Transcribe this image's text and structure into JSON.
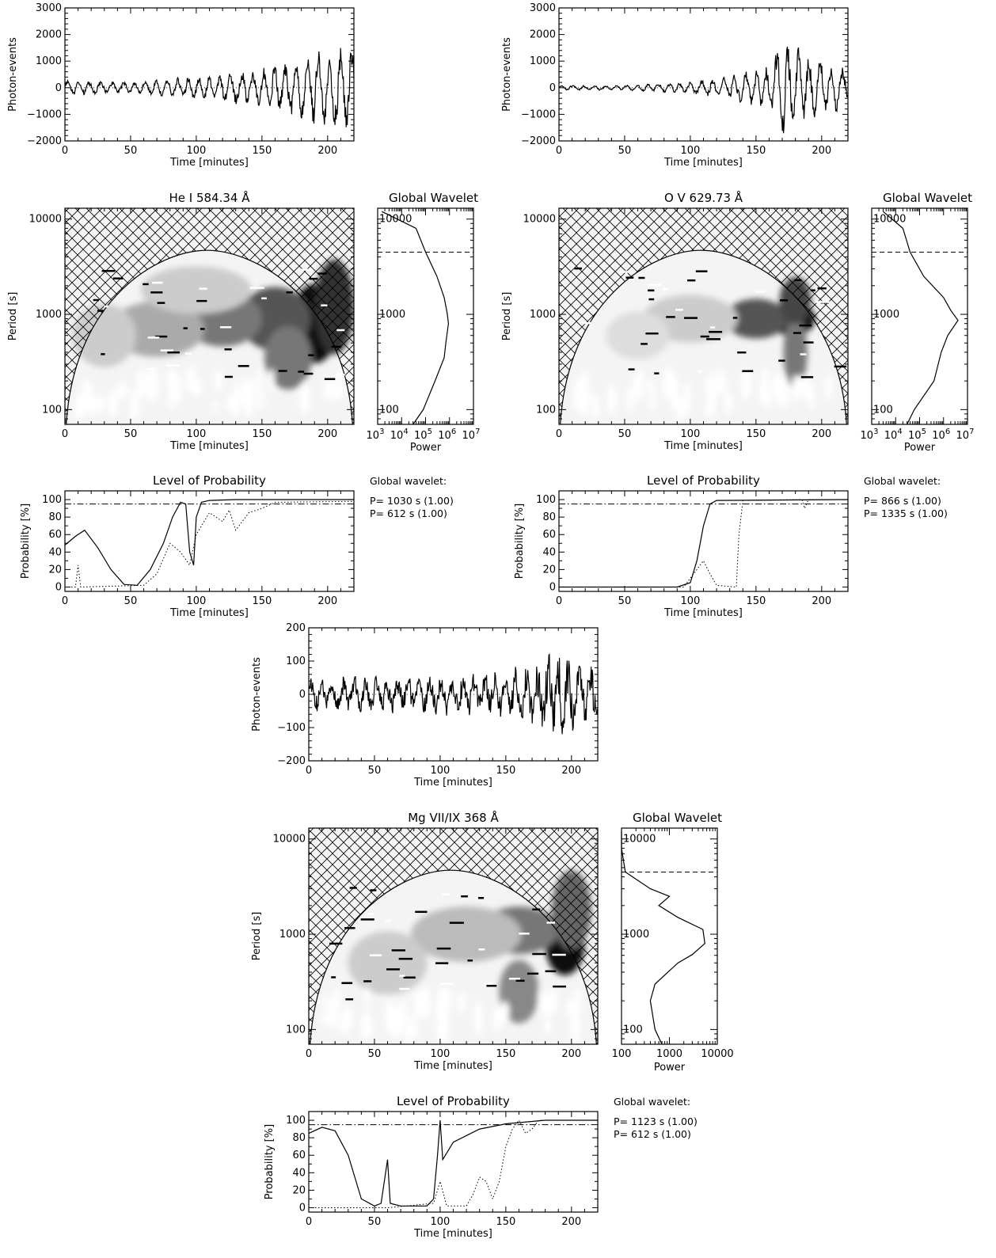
{
  "time_label": "Time [minutes]",
  "photon_label": "Photon-events",
  "period_label": "Period [s]",
  "prob_label": "Probability [%]",
  "power_label": "Power",
  "global_title": "Global Wavelet",
  "prob_title": "Level of Probability",
  "gw_label": "Global wavelet:",
  "chart_data": [
    {
      "id": "he",
      "title": "He I 584.34 Å",
      "lightcurve": {
        "type": "line",
        "xlim": [
          0,
          220
        ],
        "ylim": [
          -2000,
          3000
        ],
        "yticks": [
          -2000,
          -1000,
          0,
          1000,
          2000,
          3000
        ],
        "xticks": [
          0,
          50,
          100,
          150,
          200
        ],
        "envelope": [
          [
            0,
            300
          ],
          [
            50,
            250
          ],
          [
            100,
            500
          ],
          [
            150,
            800
          ],
          [
            170,
            1200
          ],
          [
            200,
            1700
          ],
          [
            220,
            1900
          ]
        ]
      },
      "wavelet": {
        "type": "heatmap",
        "xlim": [
          0,
          220
        ],
        "yrange": [
          70,
          13000
        ],
        "yticks": [
          100,
          1000,
          10000
        ]
      },
      "global": {
        "type": "line",
        "xticks_exp": [
          3,
          4,
          5,
          6,
          7
        ],
        "sig_level": 4500,
        "curve": [
          [
            70,
            30000
          ],
          [
            100,
            80000
          ],
          [
            200,
            250000
          ],
          [
            350,
            600000
          ],
          [
            500,
            700000
          ],
          [
            800,
            900000
          ],
          [
            1030,
            800000
          ],
          [
            1500,
            600000
          ],
          [
            2500,
            300000
          ],
          [
            4500,
            100000
          ],
          [
            8000,
            40000
          ],
          [
            12000,
            1500
          ]
        ]
      },
      "prob": {
        "type": "line",
        "xlim": [
          0,
          220
        ],
        "ylim": [
          0,
          100
        ],
        "sig": 95,
        "solid": [
          [
            0,
            48
          ],
          [
            8,
            58
          ],
          [
            15,
            65
          ],
          [
            25,
            45
          ],
          [
            35,
            20
          ],
          [
            45,
            3
          ],
          [
            55,
            2
          ],
          [
            65,
            20
          ],
          [
            75,
            50
          ],
          [
            82,
            80
          ],
          [
            88,
            97
          ],
          [
            92,
            95
          ],
          [
            95,
            40
          ],
          [
            98,
            25
          ],
          [
            100,
            80
          ],
          [
            104,
            97
          ],
          [
            110,
            99
          ],
          [
            130,
            100
          ],
          [
            220,
            100
          ]
        ],
        "dotted": [
          [
            0,
            0
          ],
          [
            8,
            0
          ],
          [
            10,
            25
          ],
          [
            12,
            0
          ],
          [
            60,
            2
          ],
          [
            70,
            15
          ],
          [
            80,
            50
          ],
          [
            88,
            40
          ],
          [
            95,
            25
          ],
          [
            100,
            60
          ],
          [
            110,
            85
          ],
          [
            120,
            75
          ],
          [
            125,
            88
          ],
          [
            130,
            65
          ],
          [
            140,
            85
          ],
          [
            150,
            90
          ],
          [
            160,
            97
          ],
          [
            220,
            98
          ]
        ]
      },
      "info": [
        "P= 1030 s (1.00)",
        "P= 612 s (1.00)"
      ]
    },
    {
      "id": "ov",
      "title": "O V 629.73 Å",
      "lightcurve": {
        "type": "line",
        "xlim": [
          0,
          220
        ],
        "ylim": [
          -2000,
          3000
        ],
        "yticks": [
          -2000,
          -1000,
          0,
          1000,
          2000,
          3000
        ],
        "xticks": [
          0,
          50,
          100,
          150,
          200
        ],
        "envelope": [
          [
            0,
            100
          ],
          [
            50,
            100
          ],
          [
            100,
            250
          ],
          [
            130,
            500
          ],
          [
            160,
            900
          ],
          [
            172,
            2200
          ],
          [
            185,
            1500
          ],
          [
            200,
            1200
          ],
          [
            220,
            800
          ]
        ]
      },
      "wavelet": {
        "type": "heatmap",
        "xlim": [
          0,
          220
        ],
        "yrange": [
          70,
          13000
        ],
        "yticks": [
          100,
          1000,
          10000
        ]
      },
      "global": {
        "type": "line",
        "xticks_exp": [
          3,
          4,
          5,
          6,
          7
        ],
        "sig_level": 4500,
        "curve": [
          [
            70,
            30000
          ],
          [
            100,
            60000
          ],
          [
            200,
            400000
          ],
          [
            400,
            800000
          ],
          [
            600,
            1500000
          ],
          [
            866,
            4000000
          ],
          [
            1100,
            2000000
          ],
          [
            1500,
            1000000
          ],
          [
            2500,
            150000
          ],
          [
            4500,
            40000
          ],
          [
            8000,
            20000
          ],
          [
            12000,
            3000
          ]
        ]
      },
      "prob": {
        "type": "line",
        "xlim": [
          0,
          220
        ],
        "ylim": [
          0,
          100
        ],
        "sig": 95,
        "solid": [
          [
            0,
            0
          ],
          [
            90,
            0
          ],
          [
            100,
            5
          ],
          [
            105,
            30
          ],
          [
            110,
            70
          ],
          [
            115,
            95
          ],
          [
            120,
            99
          ],
          [
            220,
            100
          ]
        ],
        "dotted": [
          [
            0,
            0
          ],
          [
            95,
            0
          ],
          [
            105,
            20
          ],
          [
            110,
            30
          ],
          [
            115,
            15
          ],
          [
            120,
            2
          ],
          [
            135,
            0
          ],
          [
            137,
            60
          ],
          [
            140,
            99
          ],
          [
            185,
            100
          ],
          [
            187,
            90
          ],
          [
            190,
            100
          ],
          [
            220,
            100
          ]
        ]
      },
      "info": [
        "P= 866 s (1.00)",
        "P= 1335 s (1.00)"
      ]
    },
    {
      "id": "mg",
      "title": "Mg VII/IX 368 Å",
      "lightcurve": {
        "type": "line",
        "xlim": [
          0,
          220
        ],
        "ylim": [
          -200,
          200
        ],
        "yticks": [
          -200,
          -100,
          0,
          100,
          200
        ],
        "xticks": [
          0,
          50,
          100,
          150,
          200
        ],
        "envelope": [
          [
            0,
            40
          ],
          [
            50,
            45
          ],
          [
            100,
            50
          ],
          [
            150,
            55
          ],
          [
            190,
            110
          ],
          [
            200,
            90
          ],
          [
            220,
            70
          ]
        ]
      },
      "wavelet": {
        "type": "heatmap",
        "xlim": [
          0,
          220
        ],
        "yrange": [
          70,
          13000
        ],
        "yticks": [
          100,
          1000,
          10000
        ]
      },
      "global": {
        "type": "line",
        "xticks": [
          100,
          1000,
          10000
        ],
        "xrange": [
          100,
          10000
        ],
        "sig_level": 4500,
        "curve": [
          [
            70,
            700
          ],
          [
            100,
            500
          ],
          [
            200,
            400
          ],
          [
            300,
            500
          ],
          [
            500,
            1500
          ],
          [
            612,
            3000
          ],
          [
            800,
            5500
          ],
          [
            1123,
            5000
          ],
          [
            1500,
            1500
          ],
          [
            2000,
            600
          ],
          [
            2500,
            1000
          ],
          [
            3000,
            400
          ],
          [
            4500,
            120
          ],
          [
            8000,
            100
          ],
          [
            12000,
            100
          ]
        ]
      },
      "prob": {
        "type": "line",
        "xlim": [
          0,
          220
        ],
        "ylim": [
          0,
          100
        ],
        "sig": 95,
        "solid": [
          [
            0,
            85
          ],
          [
            10,
            92
          ],
          [
            20,
            88
          ],
          [
            30,
            60
          ],
          [
            40,
            10
          ],
          [
            50,
            2
          ],
          [
            55,
            5
          ],
          [
            60,
            55
          ],
          [
            62,
            5
          ],
          [
            70,
            2
          ],
          [
            90,
            2
          ],
          [
            95,
            10
          ],
          [
            98,
            60
          ],
          [
            100,
            100
          ],
          [
            102,
            55
          ],
          [
            110,
            75
          ],
          [
            130,
            90
          ],
          [
            150,
            96
          ],
          [
            180,
            100
          ],
          [
            220,
            100
          ]
        ],
        "dotted": [
          [
            0,
            0
          ],
          [
            60,
            0
          ],
          [
            95,
            5
          ],
          [
            100,
            30
          ],
          [
            105,
            2
          ],
          [
            120,
            2
          ],
          [
            125,
            15
          ],
          [
            130,
            35
          ],
          [
            135,
            30
          ],
          [
            140,
            10
          ],
          [
            145,
            30
          ],
          [
            150,
            70
          ],
          [
            155,
            90
          ],
          [
            160,
            100
          ],
          [
            165,
            85
          ],
          [
            170,
            90
          ],
          [
            175,
            100
          ],
          [
            220,
            100
          ]
        ]
      },
      "info": [
        "P= 1123 s (1.00)",
        "P= 612 s (1.00)"
      ]
    }
  ]
}
